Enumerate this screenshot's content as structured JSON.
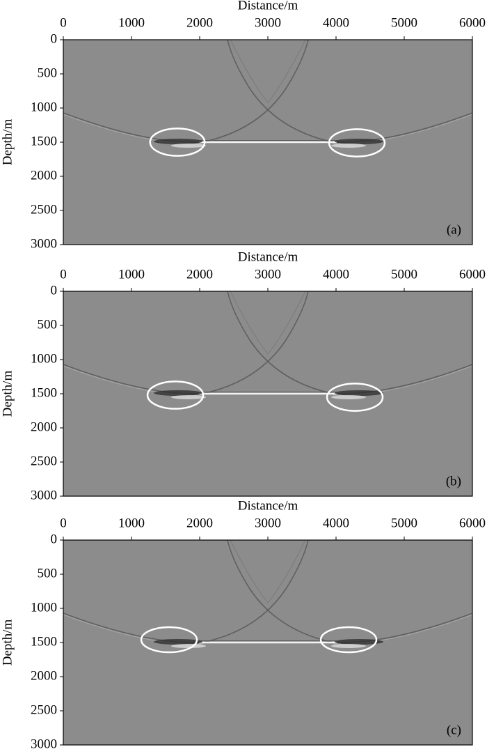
{
  "chart_data": [
    {
      "type": "image",
      "x_label": "Distance/m",
      "y_label": "Depth/m",
      "panel_label": "(a)",
      "xlim": [
        0,
        6000
      ],
      "xticks": [
        0,
        1000,
        2000,
        3000,
        4000,
        5000,
        6000
      ],
      "ylim": [
        0,
        3000
      ],
      "y_inverted": true,
      "yticks": [
        0,
        500,
        1000,
        1500,
        2000,
        2500,
        3000
      ],
      "annotations": [
        {
          "shape": "ellipse",
          "x": 1673,
          "y": 1500,
          "rx": 400,
          "ry": 200,
          "color": "#ffffff"
        },
        {
          "shape": "ellipse",
          "x": 4306,
          "y": 1510,
          "rx": 408,
          "ry": 200,
          "color": "#ffffff"
        }
      ]
    },
    {
      "type": "image",
      "x_label": "Distance/m",
      "y_label": "Depth/m",
      "panel_label": "(b)",
      "xlim": [
        0,
        6000
      ],
      "xticks": [
        0,
        1000,
        2000,
        3000,
        4000,
        5000,
        6000
      ],
      "ylim": [
        0,
        3000
      ],
      "y_inverted": true,
      "yticks": [
        0,
        500,
        1000,
        1500,
        2000,
        2500,
        3000
      ],
      "annotations": [
        {
          "shape": "ellipse",
          "x": 1643,
          "y": 1520,
          "rx": 408,
          "ry": 200,
          "color": "#ffffff"
        },
        {
          "shape": "ellipse",
          "x": 4276,
          "y": 1551,
          "rx": 408,
          "ry": 200,
          "color": "#ffffff"
        }
      ]
    },
    {
      "type": "image",
      "x_label": "Distance/m",
      "y_label": "Depth/m",
      "panel_label": "(c)",
      "xlim": [
        0,
        6000
      ],
      "xticks": [
        0,
        1000,
        2000,
        3000,
        4000,
        5000,
        6000
      ],
      "ylim": [
        0,
        3000
      ],
      "y_inverted": true,
      "yticks": [
        0,
        500,
        1000,
        1500,
        2000,
        2500,
        3000
      ],
      "annotations": [
        {
          "shape": "ellipse",
          "x": 1551,
          "y": 1459,
          "rx": 408,
          "ry": 184,
          "color": "#ffffff"
        },
        {
          "shape": "ellipse",
          "x": 4184,
          "y": 1459,
          "rx": 408,
          "ry": 184,
          "color": "#ffffff"
        }
      ]
    }
  ]
}
